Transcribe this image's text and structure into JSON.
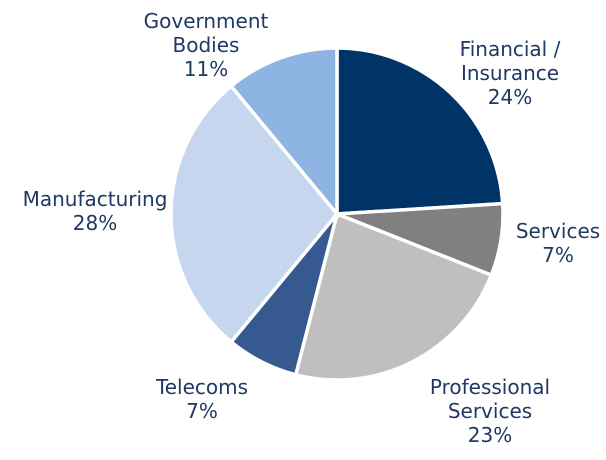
{
  "chart_data": {
    "type": "pie",
    "start_angle_deg": 0,
    "direction": "clockwise",
    "slices": [
      {
        "label_lines": [
          "Financial /",
          "Insurance"
        ],
        "value": 24,
        "value_label": "24%",
        "color": "#003366"
      },
      {
        "label_lines": [
          "Services"
        ],
        "value": 7,
        "value_label": "7%",
        "color": "#808080"
      },
      {
        "label_lines": [
          "Professional",
          "Services"
        ],
        "value": 23,
        "value_label": "23%",
        "color": "#bfbfbf"
      },
      {
        "label_lines": [
          "Telecoms"
        ],
        "value": 7,
        "value_label": "7%",
        "color": "#36598f"
      },
      {
        "label_lines": [
          "Manufacturing"
        ],
        "value": 28,
        "value_label": "28%",
        "color": "#c6d6ee"
      },
      {
        "label_lines": [
          "Government",
          "Bodies"
        ],
        "value": 11,
        "value_label": "11%",
        "color": "#8eb4e3"
      }
    ],
    "label_color": "#1f3864"
  }
}
